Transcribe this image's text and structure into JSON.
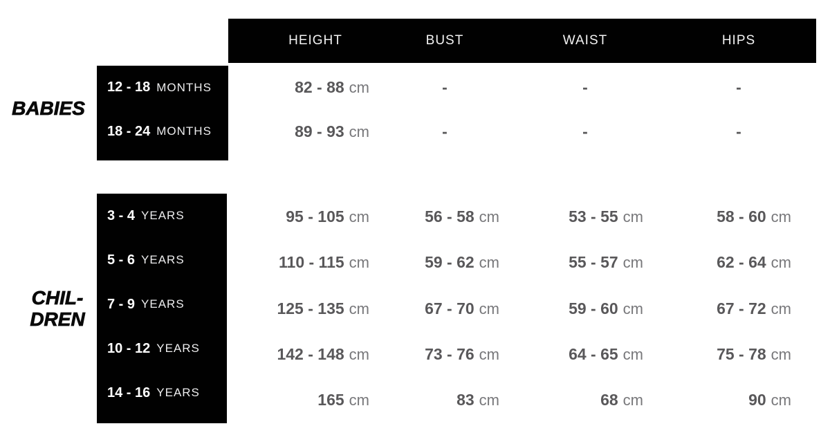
{
  "colors": {
    "background": "#ffffff",
    "band_black": "#010101",
    "header_text": "#f3f3f3",
    "age_number_text": "#fefefe",
    "age_unit_text": "#ededee",
    "value_text": "#59585a",
    "unit_text": "#77777a",
    "section_label_text": "#0a0a0a"
  },
  "chart_data": {
    "type": "table",
    "columns": [
      "HEIGHT",
      "BUST",
      "WAIST",
      "HIPS"
    ],
    "sections": [
      {
        "group_label": "BABIES",
        "group_label_lines": [
          "BABIES"
        ],
        "rows": [
          {
            "age": "12 - 18",
            "age_unit": "MONTHS",
            "values": [
              {
                "value": "82 - 88",
                "unit": "cm"
              },
              {
                "value": "-",
                "unit": ""
              },
              {
                "value": "-",
                "unit": ""
              },
              {
                "value": "-",
                "unit": ""
              }
            ]
          },
          {
            "age": "18 - 24",
            "age_unit": "MONTHS",
            "values": [
              {
                "value": "89 - 93",
                "unit": "cm"
              },
              {
                "value": "-",
                "unit": ""
              },
              {
                "value": "-",
                "unit": ""
              },
              {
                "value": "-",
                "unit": ""
              }
            ]
          }
        ]
      },
      {
        "group_label": "CHILDREN",
        "group_label_lines": [
          "CHIL-",
          "DREN"
        ],
        "rows": [
          {
            "age": "3 - 4",
            "age_unit": "YEARS",
            "values": [
              {
                "value": "95 - 105",
                "unit": "cm"
              },
              {
                "value": "56 - 58",
                "unit": "cm"
              },
              {
                "value": "53 - 55",
                "unit": "cm"
              },
              {
                "value": "58 - 60",
                "unit": "cm"
              }
            ]
          },
          {
            "age": "5 - 6",
            "age_unit": "YEARS",
            "values": [
              {
                "value": "110 - 115",
                "unit": "cm"
              },
              {
                "value": "59 - 62",
                "unit": "cm"
              },
              {
                "value": "55 - 57",
                "unit": "cm"
              },
              {
                "value": "62 - 64",
                "unit": "cm"
              }
            ]
          },
          {
            "age": "7 - 9",
            "age_unit": "YEARS",
            "values": [
              {
                "value": "125 - 135",
                "unit": "cm"
              },
              {
                "value": "67 - 70",
                "unit": "cm"
              },
              {
                "value": "59 - 60",
                "unit": "cm"
              },
              {
                "value": "67 - 72",
                "unit": "cm"
              }
            ]
          },
          {
            "age": "10 - 12",
            "age_unit": "YEARS",
            "values": [
              {
                "value": "142 - 148",
                "unit": "cm"
              },
              {
                "value": "73 - 76",
                "unit": "cm"
              },
              {
                "value": "64 - 65",
                "unit": "cm"
              },
              {
                "value": "75 - 78",
                "unit": "cm"
              }
            ]
          },
          {
            "age": "14 - 16",
            "age_unit": "YEARS",
            "values": [
              {
                "value": "165",
                "unit": "cm"
              },
              {
                "value": "83",
                "unit": "cm"
              },
              {
                "value": "68",
                "unit": "cm"
              },
              {
                "value": "90",
                "unit": "cm"
              }
            ]
          }
        ]
      }
    ]
  }
}
